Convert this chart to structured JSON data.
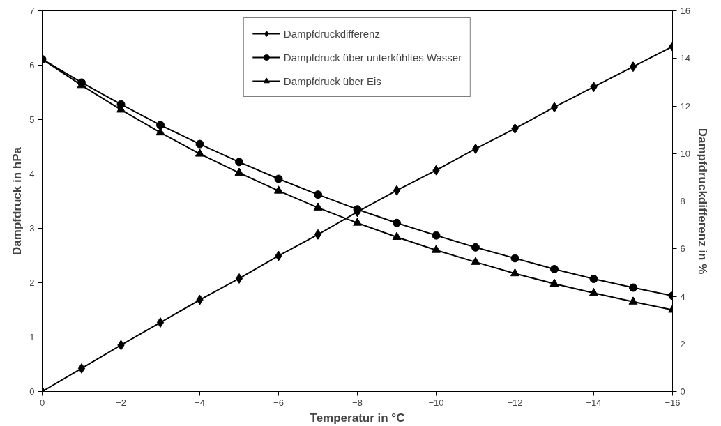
{
  "chart_data": {
    "type": "line",
    "xlabel": "Temperatur in °C",
    "ylabel": "Dampfdruck in hPa",
    "y2label": "Dampfdruckdifferenz in %",
    "x": [
      0,
      -1,
      -2,
      -3,
      -4,
      -5,
      -6,
      -7,
      -8,
      -9,
      -10,
      -11,
      -12,
      -13,
      -14,
      -15,
      -16
    ],
    "series": [
      {
        "name": "Dampfdruckdifferenz",
        "color": "#000000",
        "marker": "diamond",
        "axis": "y2",
        "values": [
          0,
          0.97,
          1.95,
          2.9,
          3.85,
          4.75,
          5.7,
          6.6,
          7.55,
          8.45,
          9.3,
          10.2,
          11.05,
          11.95,
          12.8,
          13.65,
          14.5
        ]
      },
      {
        "name": "Dampfdruck über unterkühltes Wasser",
        "color": "#000000",
        "marker": "circle",
        "values": [
          6.11,
          5.68,
          5.28,
          4.9,
          4.55,
          4.22,
          3.91,
          3.62,
          3.35,
          3.1,
          2.87,
          2.65,
          2.45,
          2.25,
          2.07,
          1.91,
          1.76
        ]
      },
      {
        "name": "Dampfdruck über Eis",
        "color": "#000000",
        "marker": "triangle",
        "values": [
          6.11,
          5.63,
          5.18,
          4.76,
          4.37,
          4.02,
          3.69,
          3.38,
          3.1,
          2.84,
          2.6,
          2.38,
          2.17,
          1.98,
          1.81,
          1.65,
          1.5
        ]
      }
    ],
    "xlim": [
      0,
      -16
    ],
    "xticks": [
      0,
      -2,
      -4,
      -6,
      -8,
      -10,
      -12,
      -14,
      -16
    ],
    "ylim": [
      0,
      7
    ],
    "yticks": [
      0,
      1,
      2,
      3,
      4,
      5,
      6,
      7
    ],
    "y2lim": [
      0,
      16
    ],
    "y2ticks": [
      0,
      2,
      4,
      6,
      8,
      10,
      12,
      14,
      16
    ],
    "grid": false,
    "legend": "top",
    "line_style": "solid"
  }
}
